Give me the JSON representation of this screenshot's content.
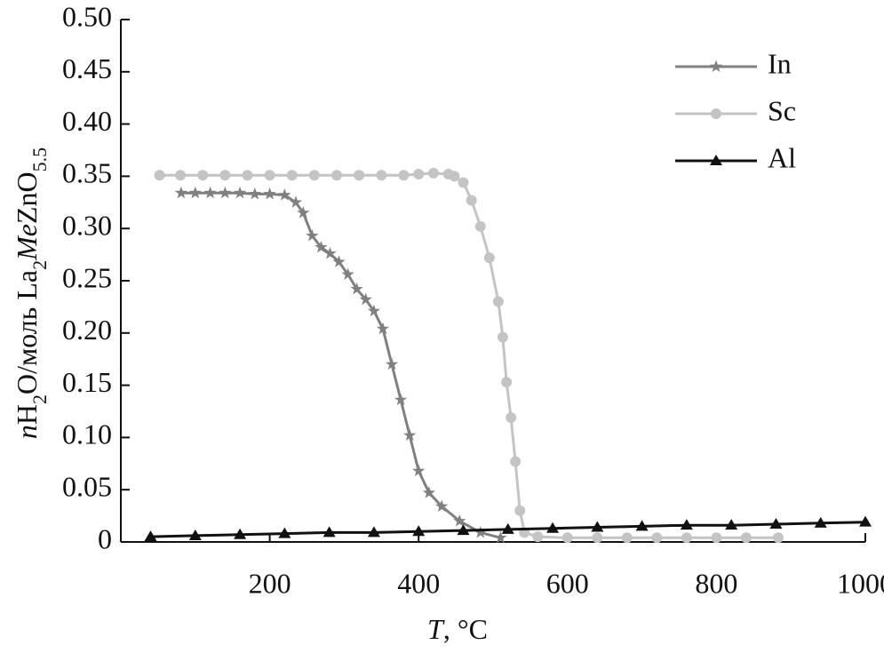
{
  "chart_data": {
    "type": "line",
    "ylabel": [
      {
        "text": "n",
        "italic": true
      },
      {
        "text": "H"
      },
      {
        "text": "2",
        "sub": true
      },
      {
        "text": "O/моль La"
      },
      {
        "text": "2",
        "sub": true
      },
      {
        "text": "Me",
        "italic": true
      },
      {
        "text": "ZnO"
      },
      {
        "text": "5.5",
        "sub": true
      }
    ],
    "xlabel": [
      {
        "text": "T",
        "italic": true
      },
      {
        "text": ", °C"
      }
    ],
    "xlim": [
      0,
      1000
    ],
    "xticks": [
      200,
      400,
      600,
      800,
      1000
    ],
    "ylim": [
      0,
      0.5
    ],
    "yticks": [
      0,
      0.05,
      {
        "value": 0.1,
        "label": "0.10"
      },
      0.15,
      {
        "value": 0.2,
        "label": "0.20"
      },
      0.25,
      {
        "value": 0.3,
        "label": "0.30"
      },
      0.35,
      {
        "value": 0.4,
        "label": "0.40"
      },
      0.45,
      {
        "value": 0.5,
        "label": "0.50"
      }
    ],
    "legend": "top-right",
    "series": [
      {
        "name": "In",
        "color": "#808080",
        "marker": "star",
        "x": [
          81,
          100,
          120,
          140,
          160,
          180,
          200,
          220,
          235,
          245,
          257,
          269,
          281,
          293,
          305,
          317,
          329,
          340,
          352,
          364,
          376,
          388,
          400,
          414,
          431,
          455,
          483,
          510
        ],
        "values": [
          0.334,
          0.334,
          0.334,
          0.334,
          0.334,
          0.333,
          0.333,
          0.332,
          0.325,
          0.315,
          0.293,
          0.282,
          0.276,
          0.268,
          0.256,
          0.242,
          0.232,
          0.221,
          0.204,
          0.17,
          0.136,
          0.102,
          0.068,
          0.047,
          0.034,
          0.02,
          0.009,
          0.004
        ]
      },
      {
        "name": "Sc",
        "color": "#c4c4c4",
        "marker": "circle",
        "x": [
          52,
          80,
          110,
          140,
          170,
          200,
          230,
          260,
          290,
          320,
          350,
          380,
          400,
          420,
          440,
          448,
          460,
          471,
          483,
          495,
          507,
          513,
          518,
          524,
          530,
          536,
          542,
          560,
          600,
          640,
          680,
          720,
          760,
          800,
          840,
          883
        ],
        "values": [
          0.351,
          0.351,
          0.351,
          0.351,
          0.351,
          0.351,
          0.351,
          0.351,
          0.351,
          0.351,
          0.351,
          0.351,
          0.352,
          0.353,
          0.352,
          0.35,
          0.344,
          0.327,
          0.302,
          0.272,
          0.23,
          0.196,
          0.153,
          0.119,
          0.077,
          0.03,
          0.009,
          0.005,
          0.004,
          0.004,
          0.004,
          0.004,
          0.004,
          0.004,
          0.004,
          0.004
        ]
      },
      {
        "name": "Al",
        "color": "#111111",
        "marker": "triangle",
        "x": [
          40,
          100,
          160,
          220,
          280,
          340,
          400,
          460,
          520,
          580,
          640,
          700,
          760,
          820,
          880,
          940,
          1000
        ],
        "values": [
          0.005,
          0.006,
          0.007,
          0.008,
          0.009,
          0.009,
          0.01,
          0.011,
          0.012,
          0.013,
          0.014,
          0.015,
          0.016,
          0.016,
          0.017,
          0.018,
          0.019
        ]
      }
    ]
  }
}
